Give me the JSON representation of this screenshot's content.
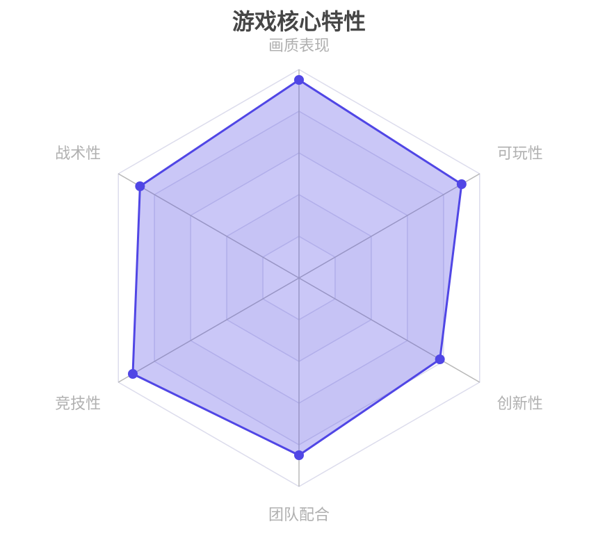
{
  "chart_data": {
    "type": "radar",
    "title": "游戏核心特性",
    "indicators": [
      "画质表现",
      "可玩性",
      "创新性",
      "团队配合",
      "竞技性",
      "战术性"
    ],
    "max": 100,
    "levels": 5,
    "series": [
      {
        "values": [
          95,
          90,
          78,
          85,
          92,
          88
        ]
      }
    ],
    "colors": {
      "line": "#5046e5",
      "fill": "rgba(80,70,229,0.3)",
      "axis": "#b8b8b8",
      "ring": "#dcdcec",
      "label": "#b0b0b0",
      "title": "#464646"
    }
  }
}
